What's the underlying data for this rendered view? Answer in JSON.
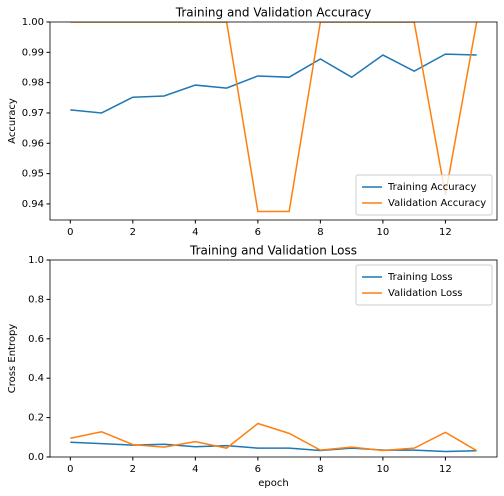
{
  "chart_data": [
    {
      "type": "line",
      "title": "Training and Validation Accuracy",
      "ylabel": "Accuracy",
      "x": [
        0,
        1,
        2,
        3,
        4,
        5,
        6,
        7,
        8,
        9,
        10,
        11,
        12,
        13
      ],
      "series": [
        {
          "name": "Training Accuracy",
          "color": "#1f77b4",
          "values": [
            0.971,
            0.97,
            0.9752,
            0.9756,
            0.9792,
            0.9782,
            0.9822,
            0.9818,
            0.9878,
            0.9818,
            0.9891,
            0.9838,
            0.9894,
            0.9891
          ]
        },
        {
          "name": "Validation Accuracy",
          "color": "#ff7f0e",
          "values": [
            1.0,
            1.0,
            1.0,
            1.0,
            1.0,
            1.0,
            0.9375,
            0.9375,
            1.0,
            1.0,
            1.0,
            1.0,
            0.943,
            1.0
          ]
        }
      ],
      "xlim": [
        -0.65,
        13.65
      ],
      "xticks": [
        0,
        2,
        4,
        6,
        8,
        10,
        12
      ],
      "ylim": [
        0.9347,
        1.0
      ],
      "yticks": [
        0.94,
        0.95,
        0.96,
        0.97,
        0.98,
        0.99,
        {
          "value": 1,
          "label": "1.00"
        }
      ],
      "legend": "lower right"
    },
    {
      "type": "line",
      "title": "Training and Validation Loss",
      "ylabel": "Cross Entropy",
      "xlabel": "epoch",
      "x": [
        0,
        1,
        2,
        3,
        4,
        5,
        6,
        7,
        8,
        9,
        10,
        11,
        12,
        13
      ],
      "series": [
        {
          "name": "Training Loss",
          "color": "#1f77b4",
          "values": [
            0.075,
            0.068,
            0.06,
            0.065,
            0.052,
            0.058,
            0.045,
            0.045,
            0.033,
            0.045,
            0.035,
            0.035,
            0.028,
            0.032
          ]
        },
        {
          "name": "Validation Loss",
          "color": "#ff7f0e",
          "values": [
            0.095,
            0.128,
            0.063,
            0.05,
            0.078,
            0.045,
            0.17,
            0.12,
            0.035,
            0.05,
            0.033,
            0.045,
            0.125,
            0.032
          ]
        }
      ],
      "xlim": [
        -0.65,
        13.65
      ],
      "xticks": [
        0,
        2,
        4,
        6,
        8,
        10,
        12
      ],
      "ylim": [
        0,
        1
      ],
      "yticks": [
        {
          "value": 0,
          "label": "0.0"
        },
        0.2,
        0.4,
        0.6,
        0.8,
        {
          "value": 1,
          "label": "1.0"
        }
      ],
      "legend": "upper right"
    }
  ]
}
